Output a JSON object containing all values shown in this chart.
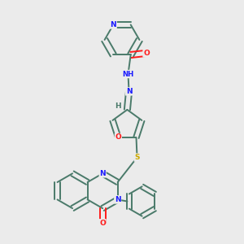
{
  "background_color": "#ebebeb",
  "bond_color": "#4a7a6a",
  "atom_colors": {
    "N": "#1a1aff",
    "O": "#ff1a1a",
    "S": "#ccaa00",
    "H": "#4a7a6a",
    "C": "#4a7a6a"
  }
}
